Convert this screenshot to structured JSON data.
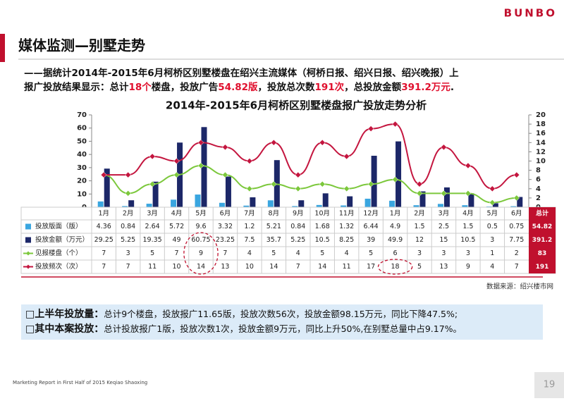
{
  "logo": "BUNBO",
  "header": {
    "title": "媒体监测—别墅走势",
    "summary": [
      {
        "text": "——据统计2014年-2015年6月柯桥区别墅楼盘在绍兴主流媒体（柯桥日报、绍兴日报、绍兴晚报）上报广投放结果显示：总计",
        "highlight": false
      },
      {
        "text": "18个",
        "highlight": true
      },
      {
        "text": "楼盘，投放广告",
        "highlight": false
      },
      {
        "text": "54.82版",
        "highlight": true
      },
      {
        "text": "，投放总次数",
        "highlight": false
      },
      {
        "text": "191次",
        "highlight": true
      },
      {
        "text": "，总投放金额",
        "highlight": false
      },
      {
        "text": "391.2万元",
        "highlight": true
      },
      {
        "text": ".",
        "highlight": false
      }
    ]
  },
  "chart_data": {
    "type": "combo",
    "title": "2014年-2015年6月柯桥区别墅楼盘报广投放走势分析",
    "categories": [
      "1月",
      "2月",
      "3月",
      "4月",
      "5月",
      "6月",
      "7月",
      "8月",
      "9月",
      "10月",
      "11月",
      "12月",
      "1月",
      "2月",
      "3月",
      "4月",
      "5月",
      "6月"
    ],
    "total_label": "总计",
    "series": [
      {
        "name": "投放版面（版）",
        "type": "bar",
        "color": "#3aa6e0",
        "axis": "y",
        "values": [
          4.36,
          0.84,
          2.64,
          5.72,
          9.6,
          3.32,
          1.2,
          5.21,
          0.84,
          1.68,
          1.32,
          6.44,
          4.9,
          1.5,
          2.5,
          1.5,
          0.5,
          0.75
        ],
        "total": 54.82
      },
      {
        "name": "投放金额（万元）",
        "type": "bar",
        "color": "#1c2768",
        "axis": "y",
        "values": [
          29.25,
          5.25,
          19.35,
          49,
          60.75,
          23.25,
          7.5,
          35.7,
          5.25,
          10.5,
          8.25,
          39,
          49.9,
          12,
          15,
          10.5,
          3,
          7.75
        ],
        "total": 391.2
      },
      {
        "name": "见报楼盘（个）",
        "type": "line",
        "color": "#7cc83c",
        "axis": "y2",
        "values": [
          7,
          3,
          5,
          7,
          9,
          7,
          4,
          5,
          4,
          5,
          4,
          5,
          6,
          3,
          3,
          3,
          1,
          2
        ],
        "total": 83
      },
      {
        "name": "投放频次（次）",
        "type": "line",
        "color": "#c4163f",
        "axis": "y2",
        "values": [
          7,
          7,
          11,
          10,
          14,
          13,
          10,
          14,
          7,
          14,
          11,
          17,
          18,
          5,
          13,
          9,
          4,
          7
        ],
        "total": 191
      }
    ],
    "ylim": [
      0,
      70
    ],
    "yticks": [
      0,
      10,
      20,
      30,
      40,
      50,
      60,
      70
    ],
    "y2lim": [
      0,
      20
    ],
    "y2ticks": [
      0,
      2,
      4,
      6,
      8,
      10,
      12,
      14,
      16,
      18,
      20
    ],
    "source": "数据来源：绍兴楼市网"
  },
  "notes": [
    {
      "label": "□上半年投放量：",
      "text": "总计9个楼盘，投放报广11.65版，投放次数56次，投放金额98.15万元，同比下降47.5%;"
    },
    {
      "label": "□其中本案投放：",
      "text": "总计投放报广1版，投放次数1次，投放金额9万元，同比上升50%,在别墅总量中占9.17%。"
    }
  ],
  "footer": {
    "text": "Marketing Report in First Half of 2015 Keqiao Shaoxing",
    "page": "19"
  }
}
